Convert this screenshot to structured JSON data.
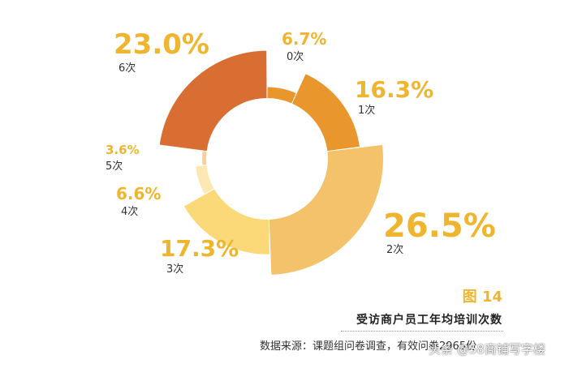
{
  "chart_data": {
    "type": "pie",
    "categories": [
      "0次",
      "1次",
      "2次",
      "3次",
      "4次",
      "5次",
      "6次"
    ],
    "values": [
      6.7,
      16.3,
      26.5,
      17.3,
      6.6,
      3.6,
      23.0
    ],
    "value_labels": [
      "6.7%",
      "16.3%",
      "26.5%",
      "17.3%",
      "6.6%",
      "3.6%",
      "23.0%"
    ],
    "colors": [
      "#e9972c",
      "#e9972c",
      "#f3c26a",
      "#fbd978",
      "#fde8b4",
      "#f6d19a",
      "#d96e33"
    ]
  },
  "figure": {
    "number": "图 14",
    "title": "受访商户员工年均培训次数",
    "source": "数据来源：课题组问卷调查，有效问卷2965份"
  },
  "watermark": "头条 @58商铺写字楼"
}
